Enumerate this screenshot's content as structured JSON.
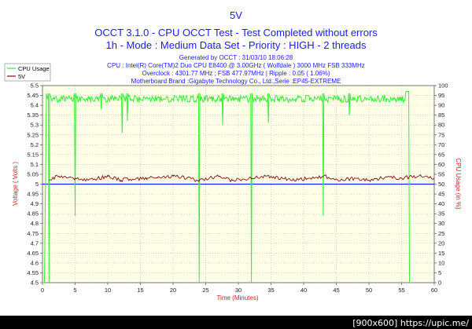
{
  "chart_data": {
    "type": "line",
    "title": "5V",
    "subtitle_lines": [
      "OCCT 3.1.0 - CPU OCCT Test - Test Completed without errors",
      "1h - Mode : Medium Data Set - Priority : HIGH - 2 threads"
    ],
    "info_lines": [
      "Generated by OCCT : 31/03/10 18:06:28",
      "CPU : Intel(R) Core(TM)2 Duo CPU E8400 @ 3.00GHz ( Wolfdale ) 3000 MHz FSB 333MHz",
      "Overclock : 4301.77 MHz ; FSB 477.97MHz | Ripple : 0.05 ( 1.06%)",
      "Motherboard Brand :Gigabyte Technology Co., Ltd.,Serie :EP45-EXTREME"
    ],
    "xlabel": "Time (Minutes)",
    "ylabel": "Voltage ( Volts )",
    "ylabel_right": "CPU Usage (in %)",
    "xlim": [
      0,
      60
    ],
    "ylim": [
      4.5,
      5.5
    ],
    "ylim_right": [
      0,
      100
    ],
    "x_ticks": [
      "0",
      "5",
      "10",
      "15",
      "20",
      "25",
      "30",
      "35",
      "40",
      "45",
      "50",
      "55",
      "60"
    ],
    "y_ticks": [
      "4.5",
      "4.55",
      "4.6",
      "4.65",
      "4.7",
      "4.75",
      "4.8",
      "4.85",
      "4.9",
      "4.95",
      "5",
      "5.05",
      "5.1",
      "5.15",
      "5.2",
      "5.25",
      "5.3",
      "5.35",
      "5.4",
      "5.45",
      "5.5"
    ],
    "y_ticks_right": [
      "0",
      "5",
      "10",
      "15",
      "20",
      "25",
      "30",
      "35",
      "40",
      "45",
      "50",
      "55",
      "60",
      "65",
      "70",
      "75",
      "80",
      "85",
      "90",
      "95",
      "100"
    ],
    "grid": true,
    "legend_position": "top-left",
    "series": [
      {
        "name": "CPU Usage",
        "axis": "right",
        "color": "#33ee33",
        "baseline": 96,
        "x": [
          0,
          0.3,
          0.6,
          0.9,
          1.0,
          1.1,
          4.9,
          5.0,
          5.1,
          8.9,
          9.0,
          9.1,
          12.1,
          12.2,
          12.3,
          12.9,
          13.0,
          13.1,
          23.9,
          24.0,
          24.1,
          27.5,
          27.6,
          27.7,
          31.9,
          32.0,
          32.1,
          34.5,
          34.6,
          34.7,
          42.9,
          43.0,
          43.1,
          46.9,
          47.0,
          47.1,
          55.6,
          55.7,
          56.1,
          56.2
        ],
        "y": [
          0,
          0,
          96,
          96,
          0,
          96,
          96,
          34,
          96,
          96,
          88,
          96,
          96,
          76,
          96,
          96,
          82,
          96,
          96,
          0,
          96,
          96,
          80,
          96,
          96,
          0,
          96,
          96,
          81,
          96,
          96,
          34,
          96,
          96,
          85,
          96,
          96,
          97,
          97,
          0
        ]
      },
      {
        "name": "5V",
        "axis": "left",
        "color": "#7a1010",
        "baseline": 5.02,
        "x": [
          1,
          2.5,
          5,
          7,
          10,
          12,
          16,
          20,
          24,
          27,
          29,
          32,
          35,
          38,
          41,
          43,
          46,
          48,
          50,
          53,
          55,
          56.5,
          58,
          60
        ],
        "y": [
          5.02,
          5.04,
          5.03,
          5.02,
          5.04,
          5.02,
          5.03,
          5.04,
          5.02,
          5.04,
          5.02,
          5.03,
          5.04,
          5.02,
          5.03,
          5.04,
          5.02,
          5.03,
          5.02,
          5.04,
          5.03,
          5.04,
          5.04,
          5.03
        ]
      }
    ],
    "reference_line": {
      "value": 5.0,
      "axis": "left",
      "color": "#1a1aff"
    }
  },
  "legend": [
    "CPU Usage",
    "5V"
  ],
  "colors": {
    "plot_bg": "#ffffe8",
    "grid": "#b0b0b0",
    "title": "#1a1aff",
    "axis_label": "#cc2020"
  },
  "watermark": "[900x600] https://upic.me/"
}
